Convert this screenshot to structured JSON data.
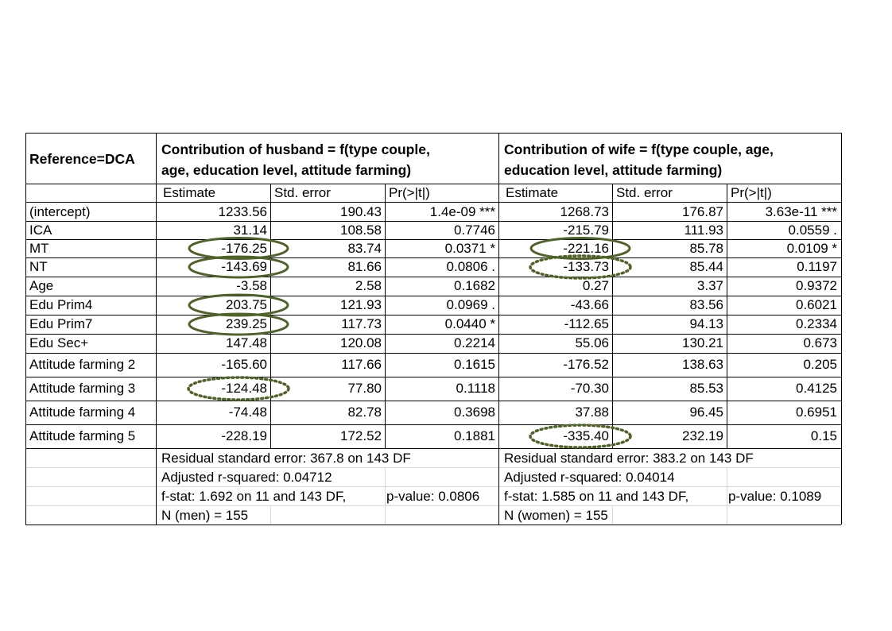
{
  "header": {
    "reference": "Reference=DCA",
    "husband_line1": "Contribution of husband = f(type couple,",
    "husband_line2": "age, education level, attitude farming)",
    "wife_line1": "Contribution of wife = f(type couple, age,",
    "wife_line2": "education level, attitude farming)"
  },
  "columns": {
    "estimate": "Estimate",
    "std_error": "Std. error",
    "pr": "Pr(>|t|)"
  },
  "rows": [
    {
      "label": "(intercept)",
      "h_est": "1233.56",
      "h_se": "190.43",
      "h_pr": "1.4e-09 ***",
      "w_est": "1268.73",
      "w_se": "176.87",
      "w_pr": "3.63e-11 ***"
    },
    {
      "label": "ICA",
      "h_est": "31.14",
      "h_se": "108.58",
      "h_pr": "0.7746",
      "w_est": "-215.79",
      "w_se": "111.93",
      "w_pr": "0.0559 ."
    },
    {
      "label": "MT",
      "h_est": "-176.25",
      "h_se": "83.74",
      "h_pr": "0.0371 *",
      "w_est": "-221.16",
      "w_se": "85.78",
      "w_pr": "0.0109 *"
    },
    {
      "label": "NT",
      "h_est": "-143.69",
      "h_se": "81.66",
      "h_pr": "0.0806 .",
      "w_est": "-133.73",
      "w_se": "85.44",
      "w_pr": "0.1197"
    },
    {
      "label": "Age",
      "h_est": "-3.58",
      "h_se": "2.58",
      "h_pr": "0.1682",
      "w_est": "0.27",
      "w_se": "3.37",
      "w_pr": "0.9372"
    },
    {
      "label": "Edu Prim4",
      "h_est": "203.75",
      "h_se": "121.93",
      "h_pr": "0.0969 .",
      "w_est": "-43.66",
      "w_se": "83.56",
      "w_pr": "0.6021"
    },
    {
      "label": "Edu Prim7",
      "h_est": "239.25",
      "h_se": "117.73",
      "h_pr": "0.0440 *",
      "w_est": "-112.65",
      "w_se": "94.13",
      "w_pr": "0.2334"
    },
    {
      "label": "Edu Sec+",
      "h_est": "147.48",
      "h_se": "120.08",
      "h_pr": "0.2214",
      "w_est": "55.06",
      "w_se": "130.21",
      "w_pr": "0.673"
    },
    {
      "label": "Attitude farming 2",
      "h_est": "-165.60",
      "h_se": "117.66",
      "h_pr": "0.1615",
      "w_est": "-176.52",
      "w_se": "138.63",
      "w_pr": "0.205"
    },
    {
      "label": "Attitude farming 3",
      "h_est": "-124.48",
      "h_se": "77.80",
      "h_pr": "0.1118",
      "w_est": "-70.30",
      "w_se": "85.53",
      "w_pr": "0.4125"
    },
    {
      "label": "Attitude farming 4",
      "h_est": "-74.48",
      "h_se": "82.78",
      "h_pr": "0.3698",
      "w_est": "37.88",
      "w_se": "96.45",
      "w_pr": "0.6951"
    },
    {
      "label": "Attitude farming 5",
      "h_est": "-228.19",
      "h_se": "172.52",
      "h_pr": "0.1881",
      "w_est": "-335.40",
      "w_se": "232.19",
      "w_pr": "0.15"
    }
  ],
  "footer": {
    "h_rse": "Residual standard error: 367.8 on 143 DF",
    "w_rse": "Residual standard error: 383.2 on 143 DF",
    "h_adj": "Adjusted r-squared:  0.04712",
    "w_adj": "Adjusted r-squared:  0.04014",
    "h_f": "f-stat: 1.692 on 11 and 143 DF,",
    "h_p": "p-value: 0.0806",
    "w_f": "f-stat: 1.585 on 11 and 143 DF,",
    "w_p": "p-value: 0.1089",
    "h_n": "N (men) = 155",
    "w_n": "N (women) = 155"
  },
  "highlights": {
    "solid_color": "#4f6228",
    "dotted_color": "#4f6228",
    "solid": [
      {
        "column": "h_est",
        "row": 2
      },
      {
        "column": "h_est",
        "row": 3
      },
      {
        "column": "h_est",
        "row": 5
      },
      {
        "column": "h_est",
        "row": 6
      },
      {
        "column": "w_est",
        "row": 2
      }
    ],
    "dotted": [
      {
        "column": "w_est",
        "row": 3
      },
      {
        "column": "h_est",
        "row": 9
      },
      {
        "column": "w_est",
        "row": 11
      }
    ]
  }
}
